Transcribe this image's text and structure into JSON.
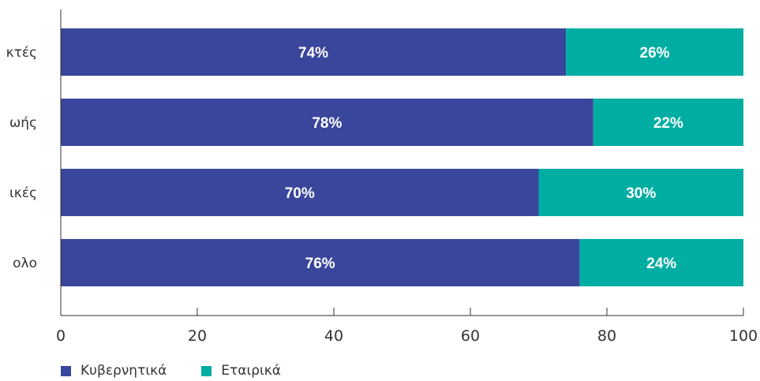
{
  "chart_data": {
    "type": "bar",
    "orientation": "horizontal",
    "stacked": true,
    "categories": [
      "κτές",
      "ωής",
      "ικές",
      "ολο"
    ],
    "series": [
      {
        "name": "Κυβερνητικά",
        "values": [
          74,
          78,
          70,
          76
        ],
        "labels": [
          "74%",
          "78%",
          "70%",
          "76%"
        ],
        "color": "#3a469b"
      },
      {
        "name": "Εταιρικά",
        "values": [
          26,
          22,
          30,
          24
        ],
        "labels": [
          "26%",
          "22%",
          "30%",
          "24%"
        ],
        "color": "#00ada3"
      }
    ],
    "xlim": [
      0,
      100
    ],
    "xticks": [
      "0",
      "20",
      "40",
      "60",
      "80",
      "100"
    ],
    "title": "",
    "xlabel": "",
    "ylabel": "",
    "grid": false,
    "legend_position": "bottom-left"
  }
}
